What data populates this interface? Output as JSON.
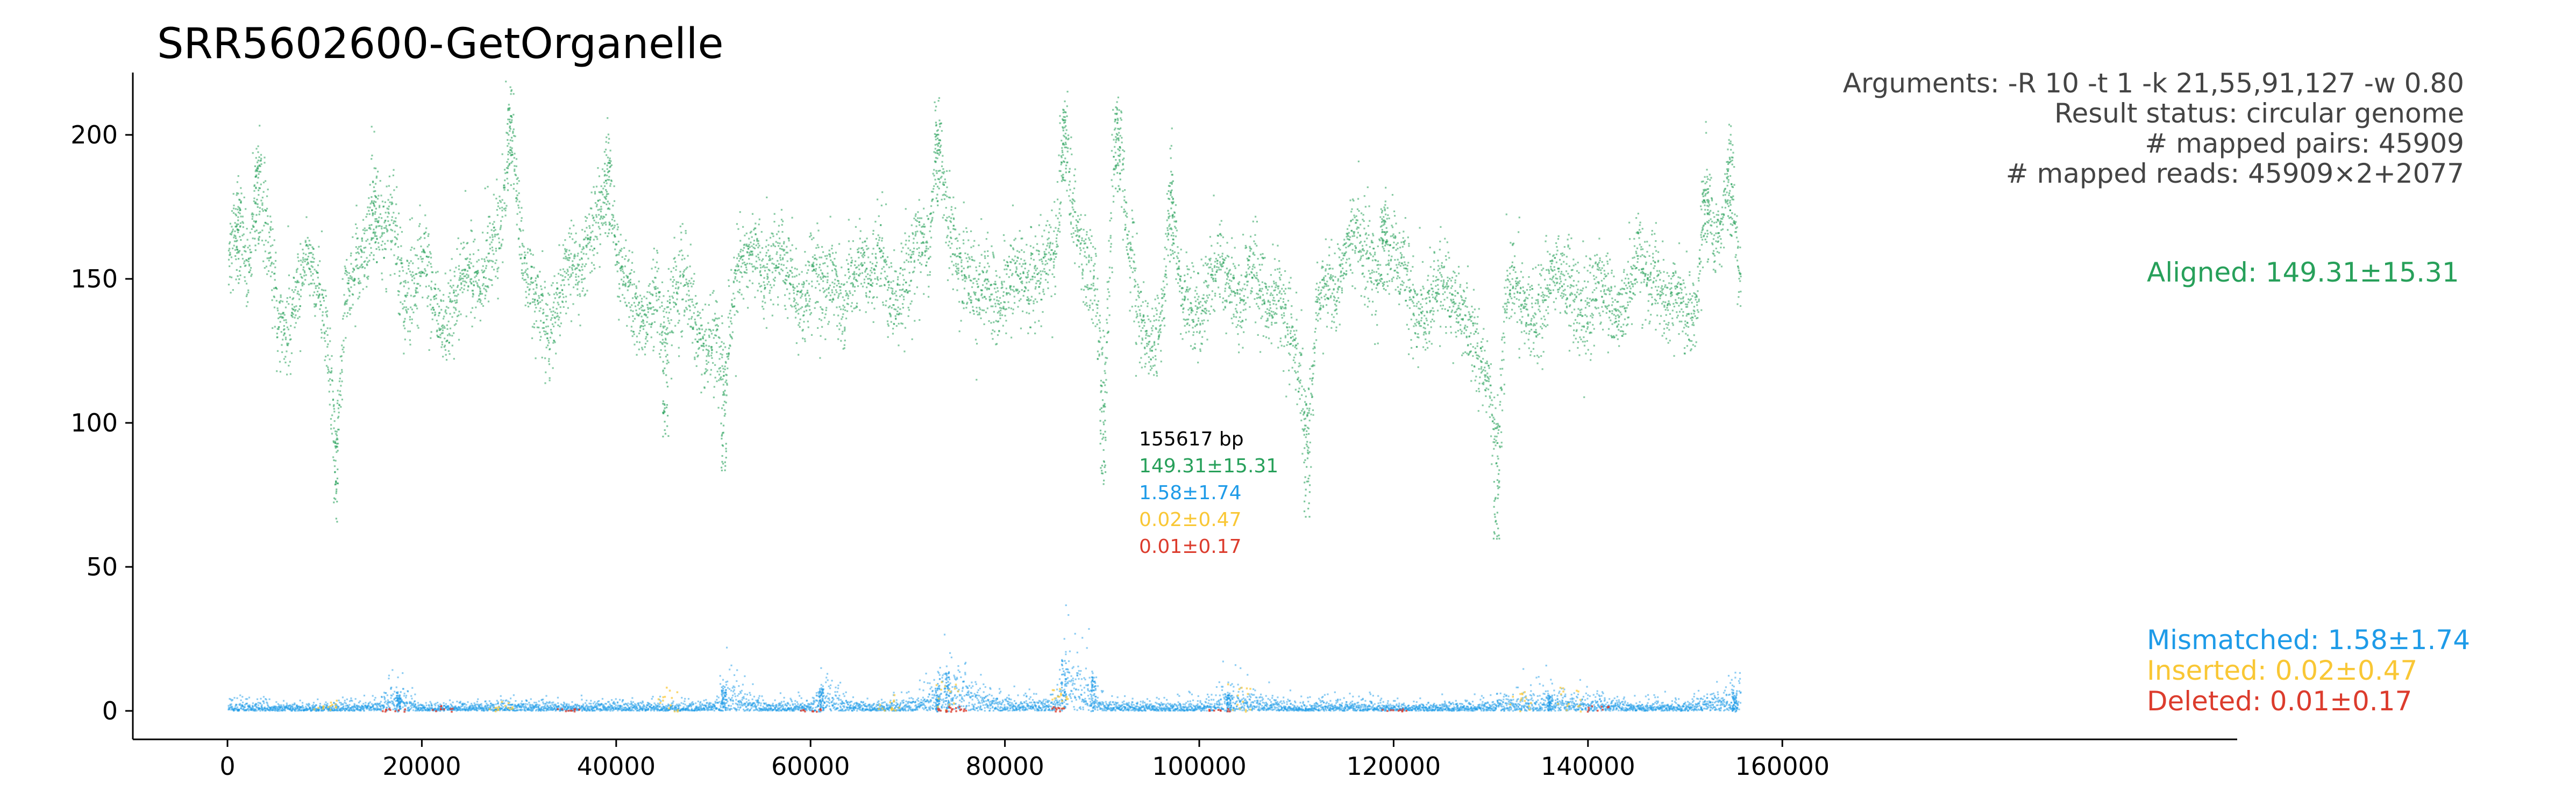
{
  "chart_data": {
    "type": "scatter",
    "title": "SRR5602600-GetOrganelle",
    "xlabel": "",
    "ylabel": "",
    "xlim": [
      -10000,
      165000
    ],
    "ylim": [
      -10,
      222
    ],
    "x_ticks": [
      0,
      20000,
      40000,
      60000,
      80000,
      100000,
      120000,
      140000,
      160000
    ],
    "x_tick_labels": [
      "0",
      "20000",
      "40000",
      "60000",
      "80000",
      "100000",
      "120000",
      "140000",
      "160000"
    ],
    "y_ticks": [
      0,
      50,
      100,
      150,
      200
    ],
    "y_tick_labels": [
      "0",
      "50",
      "100",
      "150",
      "200"
    ],
    "grid": false,
    "genome_length": 155617,
    "info_lines": [
      "Arguments: -R 10 -t 1 -k 21,55,91,127 -w 0.80",
      "Result status: circular genome",
      "# mapped pairs: 45909",
      "# mapped reads: 45909×2+2077"
    ],
    "center_stats": {
      "length": "155617 bp",
      "aligned": "149.31±15.31",
      "mismatched": "1.58±1.74",
      "inserted": "0.02±0.47",
      "deleted": "0.01±0.17"
    },
    "series": [
      {
        "name": "Aligned",
        "label": "Aligned: 149.31±15.31",
        "color": "#27a05a",
        "mean": 149.31,
        "sd": 15.31,
        "x": [
          0,
          1000,
          2000,
          3000,
          4000,
          5000,
          6000,
          7000,
          8000,
          9000,
          10000,
          11000,
          12000,
          13000,
          14000,
          15000,
          16000,
          17000,
          18000,
          19000,
          20000,
          21000,
          22000,
          23000,
          24000,
          25000,
          26000,
          27000,
          28000,
          29000,
          30000,
          31000,
          32000,
          33000,
          34000,
          35000,
          36000,
          37000,
          38000,
          39000,
          40000,
          41000,
          42000,
          43000,
          44000,
          45000,
          46000,
          47000,
          48000,
          49000,
          50000,
          51000,
          52000,
          53000,
          54000,
          55000,
          56000,
          57000,
          58000,
          59000,
          60000,
          61000,
          62000,
          63000,
          64000,
          65000,
          66000,
          67000,
          68000,
          69000,
          70000,
          71000,
          72000,
          73000,
          74000,
          75000,
          76000,
          77000,
          78000,
          79000,
          80000,
          81000,
          82000,
          83000,
          84000,
          85000,
          86000,
          87000,
          88000,
          89000,
          90000,
          91000,
          92000,
          93000,
          94000,
          95000,
          96000,
          97000,
          98000,
          99000,
          100000,
          101000,
          102000,
          103000,
          104000,
          105000,
          106000,
          107000,
          108000,
          109000,
          110000,
          111000,
          112000,
          113000,
          114000,
          115000,
          116000,
          117000,
          118000,
          119000,
          120000,
          121000,
          122000,
          123000,
          124000,
          125000,
          126000,
          127000,
          128000,
          129000,
          130000,
          131000,
          132000,
          133000,
          134000,
          135000,
          136000,
          137000,
          138000,
          139000,
          140000,
          141000,
          142000,
          143000,
          144000,
          145000,
          146000,
          147000,
          148000,
          149000,
          150000,
          151000,
          152000,
          153000,
          154000,
          155000
        ],
        "y": [
          160,
          158,
          150,
          172,
          165,
          140,
          130,
          145,
          160,
          150,
          135,
          110,
          145,
          155,
          160,
          150,
          168,
          172,
          140,
          150,
          160,
          145,
          130,
          140,
          155,
          150,
          148,
          162,
          170,
          180,
          165,
          150,
          140,
          130,
          145,
          158,
          150,
          165,
          172,
          160,
          155,
          150,
          140,
          135,
          148,
          150,
          145,
          150,
          135,
          125,
          130,
          140,
          150,
          155,
          162,
          150,
          158,
          160,
          148,
          140,
          155,
          150,
          152,
          140,
          148,
          155,
          150,
          160,
          145,
          140,
          150,
          165,
          160,
          175,
          170,
          155,
          150,
          145,
          150,
          142,
          150,
          155,
          148,
          150,
          158,
          160,
          165,
          170,
          155,
          150,
          145,
          180,
          170,
          155,
          130,
          125,
          140,
          150,
          145,
          140,
          135,
          150,
          155,
          148,
          140,
          155,
          150,
          140,
          145,
          135,
          120,
          110,
          140,
          150,
          145,
          160,
          170,
          158,
          150,
          145,
          160,
          155,
          140,
          135,
          145,
          150,
          140,
          138,
          130,
          120,
          110,
          140,
          150,
          145,
          135,
          140,
          150,
          155,
          145,
          140,
          138,
          150,
          145,
          135,
          145,
          160,
          150,
          148,
          140,
          145,
          135,
          140,
          150,
          165,
          170,
          150
        ],
        "peaks_x": [
          1000,
          3000,
          11000,
          15000,
          29000,
          39000,
          45000,
          51000,
          73000,
          86000,
          90000,
          91500,
          97000,
          111000,
          119000,
          130500,
          152000,
          154500
        ],
        "peaks_y": [
          178,
          190,
          95,
          185,
          210,
          195,
          125,
          112,
          205,
          210,
          108,
          210,
          185,
          97,
          175,
          89,
          185,
          195
        ]
      },
      {
        "name": "Mismatched",
        "label": "Mismatched: 1.58±1.74",
        "color": "#1e9be8",
        "mean": 1.58,
        "sd": 1.74,
        "x": [
          0,
          5000,
          10000,
          15000,
          17500,
          20000,
          25000,
          30000,
          35000,
          40000,
          45000,
          50000,
          51000,
          55000,
          60000,
          61000,
          65000,
          70000,
          73000,
          74000,
          80000,
          85000,
          86000,
          89000,
          90000,
          95000,
          100000,
          103000,
          105000,
          110000,
          115000,
          120000,
          125000,
          130000,
          133000,
          136000,
          140000,
          145000,
          150000,
          155000
        ],
        "y": [
          3,
          2,
          2,
          3,
          7,
          2,
          2,
          3,
          2,
          3,
          2,
          3,
          9,
          2,
          3,
          8,
          2,
          3,
          10,
          15,
          3,
          4,
          18,
          12,
          3,
          2,
          3,
          6,
          5,
          2,
          3,
          2,
          2,
          3,
          5,
          6,
          5,
          2,
          3,
          8
        ]
      },
      {
        "name": "Inserted",
        "label": "Inserted: 0.02±0.47",
        "color": "#f9c735",
        "mean": 0.02,
        "sd": 0.47,
        "x": [
          10000,
          28000,
          45000,
          68000,
          74000,
          86000,
          104000,
          133000,
          138000
        ],
        "y": [
          5,
          4,
          9,
          6,
          11,
          8,
          10,
          7,
          9
        ]
      },
      {
        "name": "Deleted",
        "label": "Deleted: 0.01±0.17",
        "color": "#dc3c2d",
        "mean": 0.01,
        "sd": 0.17,
        "x": [
          17000,
          22000,
          35000,
          60000,
          74000,
          75000,
          86000,
          102000,
          120000,
          141000
        ],
        "y": [
          1,
          2,
          1,
          1,
          2,
          1,
          2,
          1,
          1,
          2
        ]
      }
    ]
  }
}
